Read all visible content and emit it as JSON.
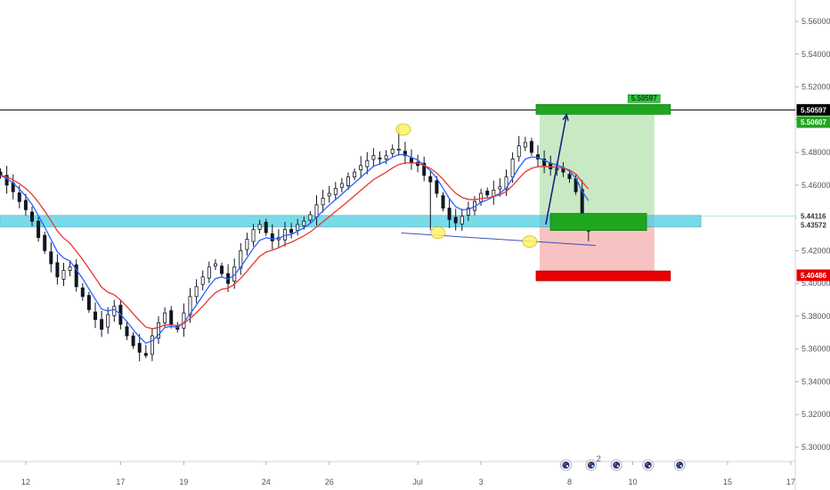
{
  "chart_data": {
    "type": "candlestick",
    "instrument": "",
    "title": "",
    "y_axis": {
      "range": [
        5.29,
        5.57
      ],
      "ticks": [
        "5.56000",
        "5.54000",
        "5.52000",
        "5.50000",
        "5.48000",
        "5.46000",
        "5.44000",
        "5.42000",
        "5.40000",
        "5.38000",
        "5.36000",
        "5.34000",
        "5.32000",
        "5.30000"
      ]
    },
    "x_axis": {
      "ticks": [
        {
          "label": "12",
          "bar": 4
        },
        {
          "label": "17",
          "bar": 19
        },
        {
          "label": "19",
          "bar": 29
        },
        {
          "label": "24",
          "bar": 42
        },
        {
          "label": "26",
          "bar": 52
        },
        {
          "label": "Jul",
          "bar": 66
        },
        {
          "label": "3",
          "bar": 76
        },
        {
          "label": "8",
          "bar": 90
        },
        {
          "label": "10",
          "bar": 100
        },
        {
          "label": "15",
          "bar": 115
        },
        {
          "label": "17",
          "bar": 125
        }
      ]
    },
    "price_path": [
      5.466,
      5.46,
      5.456,
      5.45,
      5.445,
      5.438,
      5.428,
      5.42,
      5.412,
      5.404,
      5.408,
      5.41,
      5.398,
      5.392,
      5.384,
      5.378,
      5.372,
      5.381,
      5.386,
      5.375,
      5.368,
      5.362,
      5.358,
      5.356,
      5.368,
      5.376,
      5.382,
      5.375,
      5.372,
      5.382,
      5.392,
      5.398,
      5.404,
      5.41,
      5.412,
      5.406,
      5.4,
      5.41,
      5.42,
      5.427,
      5.433,
      5.436,
      5.431,
      5.426,
      5.428,
      5.433,
      5.431,
      5.436,
      5.438,
      5.442,
      5.448,
      5.452,
      5.455,
      5.458,
      5.461,
      5.465,
      5.468,
      5.472,
      5.475,
      5.478,
      5.476,
      5.478,
      5.482,
      5.48,
      5.478,
      5.474,
      5.472,
      5.466,
      5.462,
      5.455,
      5.446,
      5.439,
      5.437,
      5.441,
      5.446,
      5.45,
      5.455,
      5.454,
      5.457,
      5.459,
      5.465,
      5.476,
      5.484,
      5.486,
      5.48,
      5.476,
      5.472,
      5.47,
      5.47,
      5.468,
      5.464,
      5.456,
      5.44
    ],
    "last_candle": {
      "open": 5.432,
      "high": 5.441,
      "low": 5.4258,
      "close": 5.439
    },
    "moving_averages": [
      {
        "kind": "fast",
        "color": "#2962ff",
        "period": 5
      },
      {
        "kind": "slow",
        "color": "#e53935",
        "period": 10
      }
    ],
    "horizontal_line": {
      "price": 5.50597,
      "color": "#000000"
    },
    "support_zone": {
      "top": 5.4415,
      "bottom": 5.4345,
      "color": "#4dd0e1"
    },
    "trendline": {
      "from": {
        "bar": 62,
        "price": 5.4308
      },
      "to": {
        "bar": 93,
        "price": 5.4232
      },
      "color": "#3f51b5"
    },
    "highlight_circles": [
      {
        "bar": 63,
        "price": 5.494
      },
      {
        "bar": 68.5,
        "price": 5.431
      },
      {
        "bar": 83,
        "price": 5.4256
      }
    ],
    "position": {
      "entry": 5.4411,
      "target": 5.506,
      "stop": 5.4049,
      "start_bar": 85,
      "end_bar": 103,
      "profit_color": "#b7e1b1",
      "loss_color": "#f5b3b3"
    },
    "projection_arrow": {
      "from": {
        "bar": 84,
        "price": 5.436
      },
      "to": {
        "bar": 87,
        "price": 5.503
      },
      "color": "#1a237e"
    },
    "price_labels": [
      {
        "text": "5.50597",
        "price": 5.50597,
        "bg": "#000000",
        "fg": "#ffffff"
      },
      {
        "text": "5.50607",
        "price": 5.4985,
        "bg": "#1fa61f",
        "fg": "#ffffff"
      },
      {
        "text": "5.44116",
        "price": 5.44116,
        "bg": "#ffffff",
        "fg": "#333333"
      },
      {
        "text": "5.43572",
        "price": 5.43572,
        "bg": "#ffffff",
        "fg": "#333333"
      },
      {
        "text": "5.40486",
        "price": 5.405,
        "bg": "#e60000",
        "fg": "#ffffff"
      }
    ],
    "target_tag": {
      "text": "5.50597",
      "bar": 97,
      "price": 5.512
    },
    "event_flags": [
      {
        "bar": 89,
        "badge": ""
      },
      {
        "bar": 93,
        "badge": "2"
      },
      {
        "bar": 97,
        "badge": ""
      },
      {
        "bar": 102,
        "badge": ""
      },
      {
        "bar": 107,
        "badge": ""
      }
    ]
  }
}
